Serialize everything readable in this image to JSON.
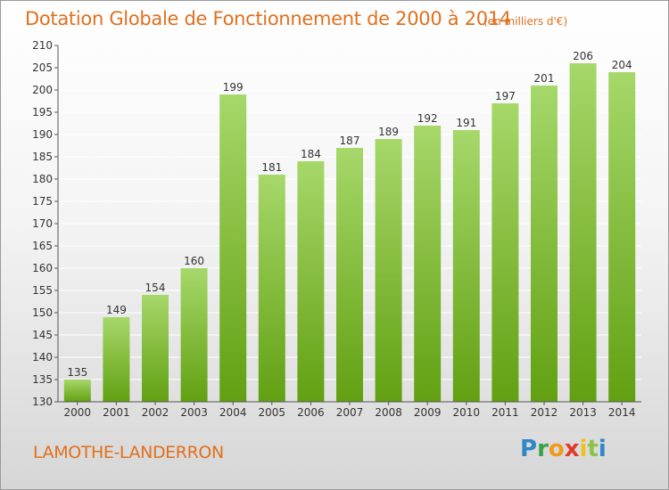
{
  "title": "Dotation Globale de Fonctionnement de 2000 à 2014",
  "unit_note": "(en milliers d'€)",
  "commune": "LAMOTHE-LANDERRON",
  "logo": {
    "letters": [
      "P",
      "r",
      "o",
      "x",
      "i",
      "t",
      "i"
    ],
    "colors": [
      "#2f86c8",
      "#3aa14a",
      "#f09a1e",
      "#e23a2a",
      "#f2c01e",
      "#8bc34a",
      "#2f86c8"
    ]
  },
  "colors": {
    "bar_light": "#a6d86a",
    "bar_dark": "#62a012",
    "grid": "#ffffff",
    "title": "#e0701e"
  },
  "chart_data": {
    "type": "bar",
    "title": "Dotation Globale de Fonctionnement de 2000 à 2014",
    "categories": [
      "2000",
      "2001",
      "2002",
      "2003",
      "2004",
      "2005",
      "2006",
      "2007",
      "2008",
      "2009",
      "2010",
      "2011",
      "2012",
      "2013",
      "2014"
    ],
    "values": [
      135,
      149,
      154,
      160,
      199,
      181,
      184,
      187,
      189,
      192,
      191,
      197,
      201,
      206,
      204
    ],
    "ylim": [
      130,
      210
    ],
    "yticks": [
      130,
      135,
      140,
      145,
      150,
      155,
      160,
      165,
      170,
      175,
      180,
      185,
      190,
      195,
      200,
      205,
      210
    ],
    "grid": true,
    "data_labels": true
  }
}
